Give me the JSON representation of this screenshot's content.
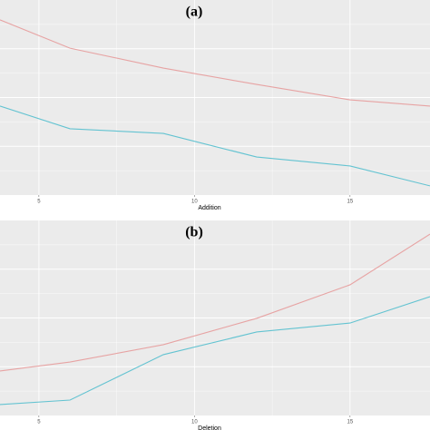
{
  "chart_data": [
    {
      "type": "line",
      "title": "(a)",
      "x_label": "Addition",
      "x": [
        3.75,
        6,
        9,
        12,
        15,
        17.57
      ],
      "series": [
        {
          "color": "#e7a3a3",
          "values": [
            89.8,
            75.3,
            65.1,
            56.7,
            48.8,
            45.6
          ]
        },
        {
          "color": "#63c3d1",
          "values": [
            45.6,
            34.0,
            31.6,
            19.5,
            14.9,
            4.7
          ]
        }
      ],
      "xlim": [
        3.75,
        17.57
      ],
      "xticks": [
        5,
        10,
        15
      ],
      "ylim": [
        0,
        100
      ],
      "grid": true
    },
    {
      "type": "line",
      "title": "(b)",
      "x_label": "Deletion",
      "x": [
        3.75,
        6,
        9,
        12,
        15,
        17.57
      ],
      "series": [
        {
          "color": "#e7a3a3",
          "values": [
            22.8,
            27.4,
            36.3,
            49.8,
            67.0,
            93.0
          ]
        },
        {
          "color": "#63c3d1",
          "values": [
            5.6,
            7.9,
            31.2,
            42.8,
            47.4,
            60.9
          ]
        }
      ],
      "xlim": [
        3.75,
        17.57
      ],
      "xticks": [
        5,
        10,
        15
      ],
      "ylim": [
        0,
        100
      ],
      "grid": true
    }
  ]
}
